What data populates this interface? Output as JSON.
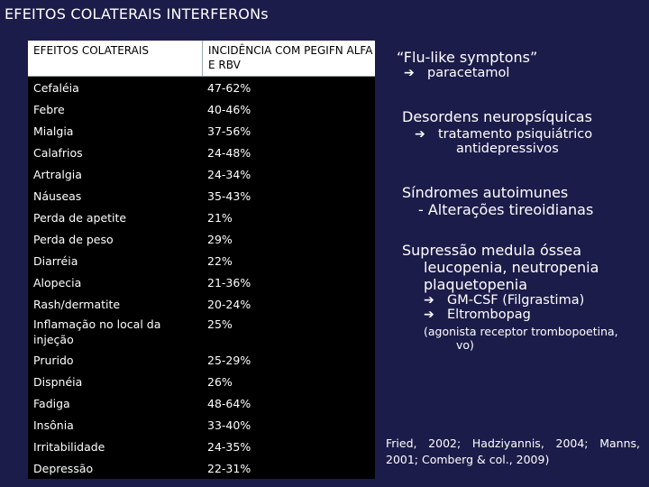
{
  "title": "EFEITOS COLATERAIS INTERFERONs",
  "table": {
    "headers": [
      "EFEITOS COLATERAIS",
      "INCIDÊNCIA COM PEGIFN ALFA E RBV"
    ],
    "rows": [
      {
        "effect": "Cefaléia",
        "incidence": "47-62%"
      },
      {
        "effect": "Febre",
        "incidence": "40-46%"
      },
      {
        "effect": "Mialgia",
        "incidence": "37-56%"
      },
      {
        "effect": "Calafrios",
        "incidence": "24-48%"
      },
      {
        "effect": "Artralgia",
        "incidence": "24-34%"
      },
      {
        "effect": "Náuseas",
        "incidence": "35-43%"
      },
      {
        "effect": "Perda de apetite",
        "incidence": "21%"
      },
      {
        "effect": "Perda de peso",
        "incidence": "29%"
      },
      {
        "effect": "Diarréia",
        "incidence": "22%"
      },
      {
        "effect": "Alopecia",
        "incidence": "21-36%"
      },
      {
        "effect": "Rash/dermatite",
        "incidence": "20-24%"
      },
      {
        "effect": "Inflamação no local da injeção",
        "incidence": "25%"
      },
      {
        "effect": "Prurido",
        "incidence": "25-29%"
      },
      {
        "effect": "Dispnéia",
        "incidence": "26%"
      },
      {
        "effect": "Fadiga",
        "incidence": "48-64%"
      },
      {
        "effect": "Insônia",
        "incidence": "33-40%"
      },
      {
        "effect": "Irritabilidade",
        "incidence": "24-35%"
      },
      {
        "effect": "Depressão",
        "incidence": "22-31%"
      }
    ]
  },
  "right": {
    "flu": {
      "title": "“Flu-like symptons”",
      "item": "paracetamol"
    },
    "neuro": {
      "title": "Desordens neuropsíquicas",
      "item_line1": "tratamento psiquiátrico",
      "item_line2": "antidepressivos"
    },
    "autoimmune": {
      "title": "Síndromes autoimunes",
      "sub": "- Alterações tireoidianas"
    },
    "marrow": {
      "title": "Supressão medula óssea",
      "sub1": "leucopenia, neutropenia",
      "sub2": "plaquetopenia",
      "item1": "GM-CSF (Filgrastima)",
      "item2": "Eltrombopag",
      "note_line1": "(agonista receptor trombopoetina,",
      "note_line2": "vo)"
    }
  },
  "citation": "Fried, 2002; Hadziyannis, 2004; Manns, 2001; Comberg & col., 2009)",
  "icons": {
    "arrow": "right-arrow-icon"
  }
}
